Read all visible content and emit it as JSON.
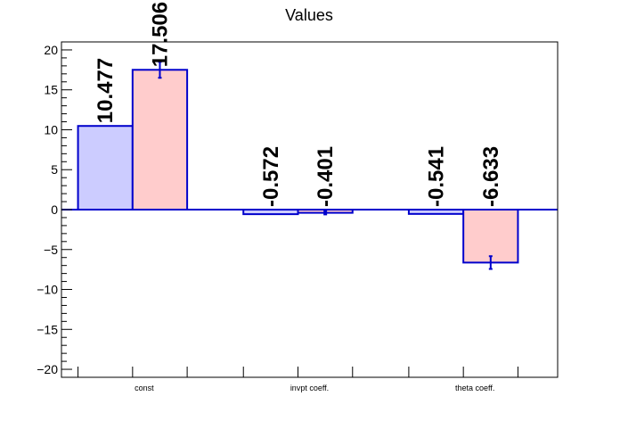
{
  "chart_data": {
    "type": "bar",
    "title": "Values",
    "xlabel": "",
    "ylabel": "",
    "categories": [
      "const",
      "invpt coeff.",
      "theta coeff."
    ],
    "ylim": [
      -21,
      21
    ],
    "y_ticks": [
      "20",
      "15",
      "10",
      "5",
      "0",
      "−5",
      "−10",
      "−15",
      "−20"
    ],
    "grid": false,
    "legend": "none",
    "series": [
      {
        "color": "#ccccff",
        "edge_color": "#0000cc",
        "values": [
          10.477,
          -0.572,
          -0.541
        ],
        "errors": [
          0.0,
          0.0,
          0.0
        ],
        "labels": [
          "10.477",
          "-0.572",
          "-0.541"
        ]
      },
      {
        "color": "#ffcccc",
        "edge_color": "#0000cc",
        "values": [
          17.506,
          -0.401,
          -6.633
        ],
        "errors": [
          1.0,
          0.2,
          0.8
        ],
        "labels": [
          "17.506",
          "-0.401",
          "-6.633"
        ]
      }
    ]
  }
}
